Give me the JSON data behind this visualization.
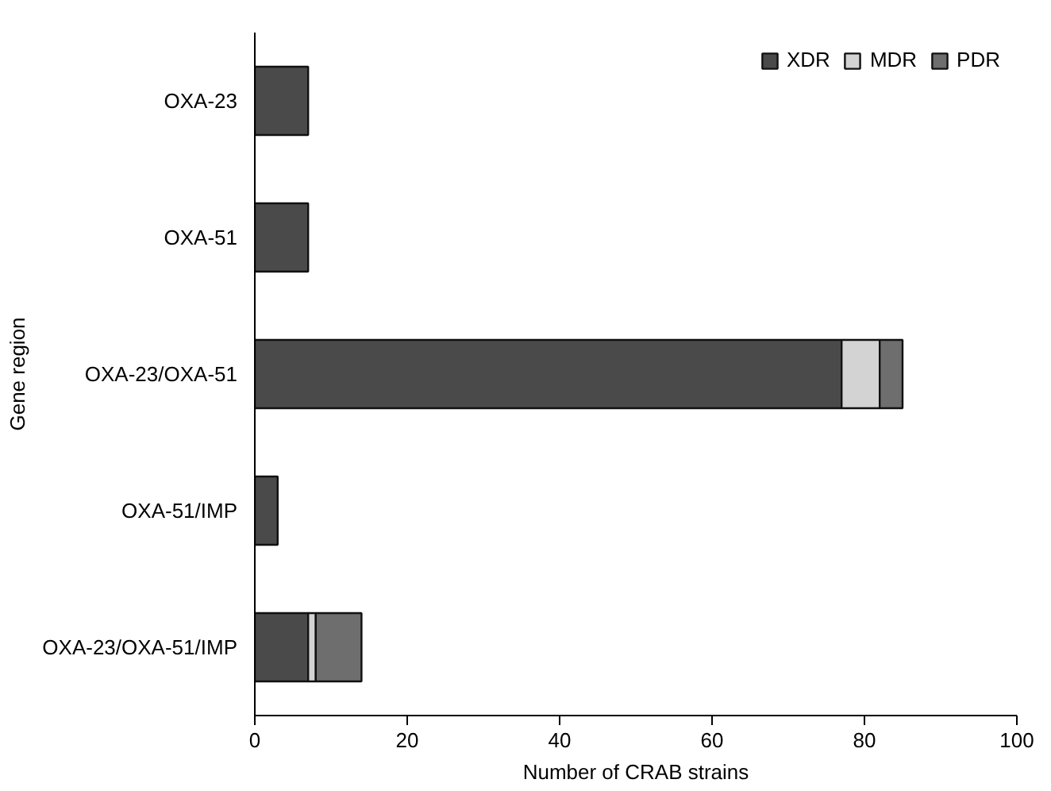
{
  "chart_data": {
    "type": "bar",
    "orientation": "horizontal",
    "stacked": true,
    "xlabel": "Number of CRAB strains",
    "ylabel": "Gene region",
    "categories": [
      "OXA-23",
      "OXA-51",
      "OXA-23/OXA-51",
      "OXA-51/IMP",
      "OXA-23/OXA-51/IMP"
    ],
    "series": [
      {
        "name": "XDR",
        "color": "#4a4a4a",
        "values": [
          7,
          7,
          77,
          3,
          7
        ]
      },
      {
        "name": "MDR",
        "color": "#d3d3d3",
        "values": [
          null,
          null,
          5,
          null,
          1
        ]
      },
      {
        "name": "PDR",
        "color": "#6e6e6e",
        "values": [
          null,
          null,
          3,
          null,
          6
        ]
      }
    ],
    "xlim": [
      0,
      100
    ],
    "xticks": [
      0,
      20,
      40,
      60,
      80,
      100
    ],
    "grid": false,
    "legend": "top right"
  }
}
